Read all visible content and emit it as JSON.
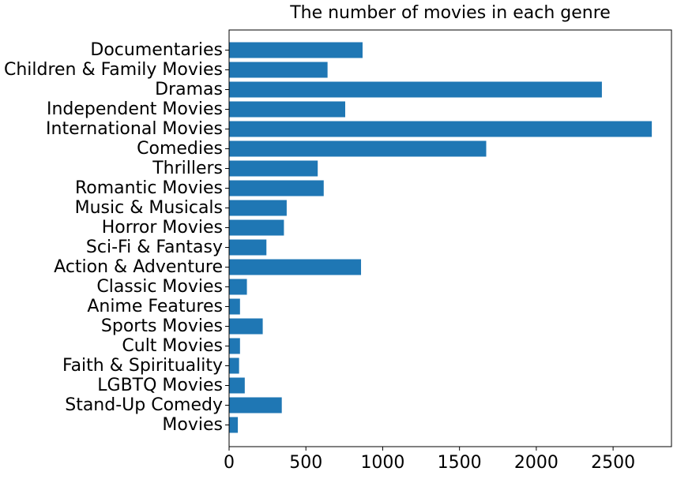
{
  "chart_data": {
    "type": "bar",
    "orientation": "horizontal",
    "title": "The number of movies in each genre",
    "xlabel": "",
    "ylabel": "",
    "xlim": [
      0,
      2880
    ],
    "xticks": [
      0,
      500,
      1000,
      1500,
      2000,
      2500
    ],
    "grid": false,
    "bar_color": "#1f77b4",
    "categories": [
      "Documentaries",
      "Children & Family Movies",
      "Dramas",
      "Independent Movies",
      "International Movies",
      "Comedies",
      "Thrillers",
      "Romantic Movies",
      "Music & Musicals",
      "Horror Movies",
      "Sci-Fi & Fantasy",
      "Action & Adventure",
      "Classic Movies",
      "Anime Features",
      "Sports Movies",
      "Cult Movies",
      "Faith & Spirituality",
      "LGBTQ Movies",
      "Stand-Up Comedy",
      "Movies"
    ],
    "values": [
      869,
      641,
      2427,
      756,
      2752,
      1674,
      577,
      616,
      375,
      357,
      243,
      859,
      116,
      71,
      219,
      71,
      65,
      102,
      343,
      57
    ]
  }
}
